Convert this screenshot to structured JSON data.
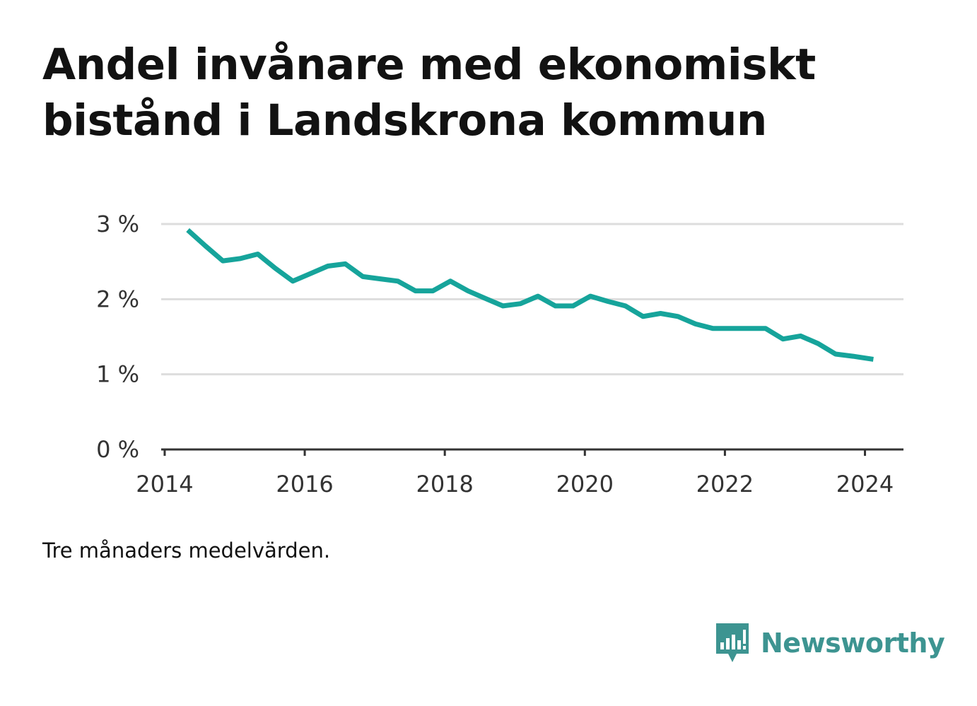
{
  "title_lines": [
    "Andel invånare med ekonomiskt",
    "bistånd i Landskrona kommun"
  ],
  "note": "Tre månaders medelvärden.",
  "brand": {
    "name": "Newsworthy",
    "icon": "newsworthy-logo-icon",
    "color": "#3d9491"
  },
  "colors": {
    "line": "#16a49b",
    "grid": "#dddddd",
    "axis": "#333333"
  },
  "chart_data": {
    "type": "line",
    "xlabel": "",
    "ylabel": "",
    "xlim": [
      2013.95,
      2024.55
    ],
    "ylim": [
      0,
      3
    ],
    "x_ticks": [
      2014,
      2016,
      2018,
      2020,
      2022,
      2024
    ],
    "y_ticks": [
      {
        "value": 0,
        "label": "0 %"
      },
      {
        "value": 1,
        "label": "1 %"
      },
      {
        "value": 2,
        "label": "2 %"
      },
      {
        "value": 3,
        "label": "3 %"
      }
    ],
    "grid": true,
    "series": [
      {
        "x": [
          2014.33,
          2014.58,
          2014.83,
          2015.08,
          2015.33,
          2015.58,
          2015.83,
          2016.08,
          2016.33,
          2016.58,
          2016.83,
          2017.08,
          2017.33,
          2017.58,
          2017.83,
          2018.08,
          2018.33,
          2018.58,
          2018.83,
          2019.08,
          2019.33,
          2019.58,
          2019.83,
          2020.08,
          2020.33,
          2020.58,
          2020.83,
          2021.08,
          2021.33,
          2021.58,
          2021.83,
          2022.08,
          2022.33,
          2022.58,
          2022.83,
          2023.08,
          2023.33,
          2023.58,
          2023.83,
          2024.12
        ],
        "values": [
          2.92,
          2.71,
          2.51,
          2.54,
          2.6,
          2.41,
          2.24,
          2.34,
          2.44,
          2.47,
          2.3,
          2.27,
          2.24,
          2.11,
          2.11,
          2.24,
          2.11,
          2.01,
          1.91,
          1.94,
          2.04,
          1.91,
          1.91,
          2.04,
          1.97,
          1.91,
          1.77,
          1.81,
          1.77,
          1.67,
          1.61,
          1.61,
          1.61,
          1.61,
          1.47,
          1.51,
          1.41,
          1.27,
          1.24,
          1.2
        ]
      }
    ]
  }
}
